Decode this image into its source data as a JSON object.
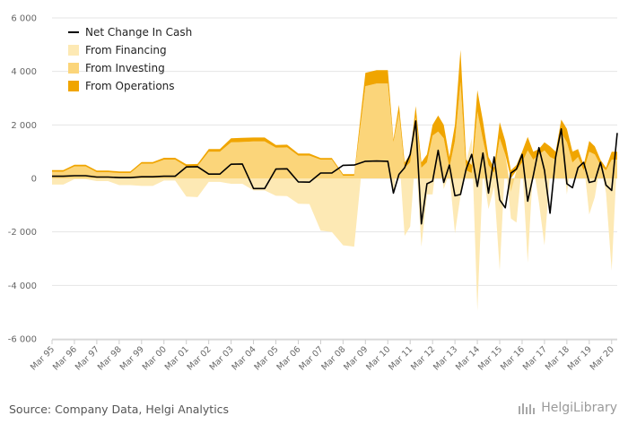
{
  "chart_data": {
    "type": "area",
    "title": "",
    "xlabel": "",
    "ylabel": "",
    "ylim": [
      -6000,
      6000
    ],
    "yticks": [
      6000,
      4000,
      2000,
      0,
      -2000,
      -4000,
      -6000
    ],
    "ytick_labels": [
      "6 000",
      "4 000",
      "2 000",
      "0",
      "-2 000",
      "-4 000",
      "-6 000"
    ],
    "xlim": [
      1995.0,
      2020.25
    ],
    "xtick_labels": [
      "Mar 95",
      "Mar 96",
      "Mar 97",
      "Mar 98",
      "Mar 99",
      "Mar 00",
      "Mar 01",
      "Mar 02",
      "Mar 03",
      "Mar 04",
      "Mar 05",
      "Mar 06",
      "Mar 07",
      "Mar 08",
      "Mar 09",
      "Mar 10",
      "Mar 11",
      "Mar 12",
      "Mar 13",
      "Mar 14",
      "Mar 15",
      "Mar 16",
      "Mar 17",
      "Mar 18",
      "Mar 19",
      "Mar 20"
    ],
    "xtick_values": [
      1995,
      1996,
      1997,
      1998,
      1999,
      2000,
      2001,
      2002,
      2003,
      2004,
      2005,
      2006,
      2007,
      2008,
      2009,
      2010,
      2011,
      2012,
      2013,
      2014,
      2015,
      2016,
      2017,
      2018,
      2019,
      2020
    ],
    "legend_position": "top-left",
    "stacked": true,
    "series": [
      {
        "name": "Net Change In Cash",
        "kind": "line",
        "color": "#000000",
        "points": [
          [
            1995,
            80
          ],
          [
            1995.5,
            80
          ],
          [
            1996,
            100
          ],
          [
            1996.5,
            100
          ],
          [
            1997,
            50
          ],
          [
            1997.5,
            50
          ],
          [
            1998,
            30
          ],
          [
            1998.5,
            30
          ],
          [
            1999,
            60
          ],
          [
            1999.5,
            60
          ],
          [
            2000,
            80
          ],
          [
            2000.5,
            80
          ],
          [
            2001,
            430
          ],
          [
            2001.5,
            440
          ],
          [
            2002,
            160
          ],
          [
            2002.5,
            160
          ],
          [
            2003,
            530
          ],
          [
            2003.5,
            540
          ],
          [
            2004,
            -380
          ],
          [
            2004.5,
            -380
          ],
          [
            2005,
            350
          ],
          [
            2005.5,
            360
          ],
          [
            2006,
            -130
          ],
          [
            2006.5,
            -140
          ],
          [
            2007,
            200
          ],
          [
            2007.5,
            200
          ],
          [
            2008,
            490
          ],
          [
            2008.5,
            500
          ],
          [
            2009,
            640
          ],
          [
            2009.5,
            650
          ],
          [
            2010,
            640
          ],
          [
            2010.25,
            -550
          ],
          [
            2010.5,
            150
          ],
          [
            2010.75,
            400
          ],
          [
            2011,
            900
          ],
          [
            2011.25,
            2150
          ],
          [
            2011.5,
            -1700
          ],
          [
            2011.75,
            -200
          ],
          [
            2012,
            -100
          ],
          [
            2012.25,
            1050
          ],
          [
            2012.5,
            -150
          ],
          [
            2012.75,
            500
          ],
          [
            2013,
            -650
          ],
          [
            2013.25,
            -600
          ],
          [
            2013.5,
            350
          ],
          [
            2013.75,
            900
          ],
          [
            2014,
            -300
          ],
          [
            2014.25,
            950
          ],
          [
            2014.5,
            -550
          ],
          [
            2014.75,
            800
          ],
          [
            2015,
            -800
          ],
          [
            2015.25,
            -1100
          ],
          [
            2015.5,
            200
          ],
          [
            2015.75,
            350
          ],
          [
            2016,
            900
          ],
          [
            2016.25,
            -850
          ],
          [
            2016.5,
            100
          ],
          [
            2016.75,
            1150
          ],
          [
            2017,
            300
          ],
          [
            2017.25,
            -1300
          ],
          [
            2017.5,
            800
          ],
          [
            2017.75,
            1850
          ],
          [
            2018,
            -200
          ],
          [
            2018.25,
            -350
          ],
          [
            2018.5,
            400
          ],
          [
            2018.75,
            600
          ],
          [
            2019,
            -150
          ],
          [
            2019.25,
            -100
          ],
          [
            2019.5,
            600
          ],
          [
            2019.75,
            -250
          ],
          [
            2020,
            -450
          ],
          [
            2020.25,
            1700
          ]
        ]
      },
      {
        "name": "From Financing",
        "kind": "area",
        "color": "#fde9b4",
        "points": [
          [
            1995,
            -230
          ],
          [
            1995.5,
            -230
          ],
          [
            1996,
            -30
          ],
          [
            1996.5,
            -30
          ],
          [
            1997,
            -100
          ],
          [
            1997.5,
            -100
          ],
          [
            1998,
            -250
          ],
          [
            1998.5,
            -250
          ],
          [
            1999,
            -280
          ],
          [
            1999.5,
            -280
          ],
          [
            2000,
            -80
          ],
          [
            2000.5,
            -80
          ],
          [
            2001,
            -680
          ],
          [
            2001.5,
            -700
          ],
          [
            2002,
            -130
          ],
          [
            2002.5,
            -130
          ],
          [
            2003,
            -200
          ],
          [
            2003.5,
            -200
          ],
          [
            2004,
            -450
          ],
          [
            2004.5,
            -450
          ],
          [
            2005,
            -650
          ],
          [
            2005.5,
            -660
          ],
          [
            2006,
            -950
          ],
          [
            2006.5,
            -960
          ],
          [
            2007,
            -1950
          ],
          [
            2007.5,
            -2000
          ],
          [
            2008,
            -2500
          ],
          [
            2008.5,
            -2550
          ],
          [
            2009,
            1750
          ],
          [
            2009.5,
            1760
          ],
          [
            2010,
            1400
          ],
          [
            2010.25,
            -600
          ],
          [
            2010.5,
            1000
          ],
          [
            2010.75,
            -2150
          ],
          [
            2011,
            -1800
          ],
          [
            2011.25,
            1000
          ],
          [
            2011.5,
            -2550
          ],
          [
            2011.75,
            -600
          ],
          [
            2012,
            -600
          ],
          [
            2012.25,
            1150
          ],
          [
            2012.5,
            -400
          ],
          [
            2012.75,
            200
          ],
          [
            2013,
            -2050
          ],
          [
            2013.25,
            -650
          ],
          [
            2013.5,
            600
          ],
          [
            2013.75,
            1500
          ],
          [
            2014,
            -4950
          ],
          [
            2014.25,
            300
          ],
          [
            2014.5,
            -1150
          ],
          [
            2014.75,
            -300
          ],
          [
            2015,
            -3450
          ],
          [
            2015.25,
            700
          ],
          [
            2015.5,
            -1500
          ],
          [
            2015.75,
            -1650
          ],
          [
            2016,
            600
          ],
          [
            2016.25,
            -3150
          ],
          [
            2016.5,
            500
          ],
          [
            2016.75,
            -900
          ],
          [
            2017,
            -2500
          ],
          [
            2017.25,
            200
          ],
          [
            2017.5,
            900
          ],
          [
            2017.75,
            1400
          ],
          [
            2018,
            -600
          ],
          [
            2018.25,
            1100
          ],
          [
            2018.5,
            400
          ],
          [
            2018.75,
            600
          ],
          [
            2019,
            -1350
          ],
          [
            2019.25,
            -700
          ],
          [
            2019.5,
            600
          ],
          [
            2019.75,
            -550
          ],
          [
            2020,
            -3450
          ],
          [
            2020.25,
            900
          ]
        ]
      },
      {
        "name": "From Investing",
        "kind": "area",
        "color": "#fbd57a",
        "points": [
          [
            1995,
            250
          ],
          [
            1995.5,
            250
          ],
          [
            1996,
            450
          ],
          [
            1996.5,
            450
          ],
          [
            1997,
            230
          ],
          [
            1997.5,
            230
          ],
          [
            1998,
            200
          ],
          [
            1998.5,
            200
          ],
          [
            1999,
            550
          ],
          [
            1999.5,
            550
          ],
          [
            2000,
            700
          ],
          [
            2000.5,
            700
          ],
          [
            2001,
            450
          ],
          [
            2001.5,
            460
          ],
          [
            2002,
            1000
          ],
          [
            2002.5,
            1000
          ],
          [
            2003,
            1350
          ],
          [
            2003.5,
            1360
          ],
          [
            2004,
            1380
          ],
          [
            2004.5,
            1380
          ],
          [
            2005,
            1150
          ],
          [
            2005.5,
            1160
          ],
          [
            2006,
            850
          ],
          [
            2006.5,
            850
          ],
          [
            2007,
            700
          ],
          [
            2007.5,
            700
          ],
          [
            2008,
            100
          ],
          [
            2008.5,
            100
          ],
          [
            2009,
            3450
          ],
          [
            2009.5,
            3550
          ],
          [
            2010,
            3550
          ],
          [
            2010.25,
            1350
          ],
          [
            2010.5,
            2450
          ],
          [
            2010.75,
            400
          ],
          [
            2011,
            600
          ],
          [
            2011.25,
            2300
          ],
          [
            2011.5,
            400
          ],
          [
            2011.75,
            600
          ],
          [
            2012,
            1600
          ],
          [
            2012.25,
            1750
          ],
          [
            2012.5,
            1500
          ],
          [
            2012.75,
            400
          ],
          [
            2013,
            1400
          ],
          [
            2013.25,
            3600
          ],
          [
            2013.5,
            300
          ],
          [
            2013.75,
            200
          ],
          [
            2014,
            2500
          ],
          [
            2014.25,
            1450
          ],
          [
            2014.5,
            500
          ],
          [
            2014.75,
            200
          ],
          [
            2015,
            1500
          ],
          [
            2015.25,
            900
          ],
          [
            2015.5,
            -500
          ],
          [
            2015.75,
            300
          ],
          [
            2016,
            600
          ],
          [
            2016.25,
            1050
          ],
          [
            2016.5,
            700
          ],
          [
            2016.75,
            900
          ],
          [
            2017,
            1050
          ],
          [
            2017.25,
            800
          ],
          [
            2017.5,
            700
          ],
          [
            2017.75,
            1700
          ],
          [
            2018,
            1350
          ],
          [
            2018.25,
            600
          ],
          [
            2018.5,
            800
          ],
          [
            2018.75,
            300
          ],
          [
            2019,
            1000
          ],
          [
            2019.25,
            900
          ],
          [
            2019.5,
            500
          ],
          [
            2019.75,
            300
          ],
          [
            2020,
            700
          ],
          [
            2020.25,
            700
          ]
        ]
      },
      {
        "name": "From Operations",
        "kind": "area",
        "color": "#f0a500",
        "points": [
          [
            1995,
            60
          ],
          [
            1995.5,
            60
          ],
          [
            1996,
            60
          ],
          [
            1996.5,
            60
          ],
          [
            1997,
            60
          ],
          [
            1997.5,
            60
          ],
          [
            1998,
            60
          ],
          [
            1998.5,
            60
          ],
          [
            1999,
            60
          ],
          [
            1999.5,
            60
          ],
          [
            2000,
            70
          ],
          [
            2000.5,
            70
          ],
          [
            2001,
            80
          ],
          [
            2001.5,
            80
          ],
          [
            2002,
            100
          ],
          [
            2002.5,
            100
          ],
          [
            2003,
            150
          ],
          [
            2003.5,
            160
          ],
          [
            2004,
            150
          ],
          [
            2004.5,
            150
          ],
          [
            2005,
            100
          ],
          [
            2005.5,
            100
          ],
          [
            2006,
            80
          ],
          [
            2006.5,
            80
          ],
          [
            2007,
            60
          ],
          [
            2007.5,
            60
          ],
          [
            2008,
            60
          ],
          [
            2008.5,
            60
          ],
          [
            2009,
            500
          ],
          [
            2009.5,
            500
          ],
          [
            2010,
            500
          ],
          [
            2010.25,
            100
          ],
          [
            2010.5,
            300
          ],
          [
            2010.75,
            200
          ],
          [
            2011,
            300
          ],
          [
            2011.25,
            400
          ],
          [
            2011.5,
            200
          ],
          [
            2011.75,
            300
          ],
          [
            2012,
            400
          ],
          [
            2012.25,
            600
          ],
          [
            2012.5,
            500
          ],
          [
            2012.75,
            400
          ],
          [
            2013,
            600
          ],
          [
            2013.25,
            1200
          ],
          [
            2013.5,
            400
          ],
          [
            2013.75,
            300
          ],
          [
            2014,
            800
          ],
          [
            2014.25,
            700
          ],
          [
            2014.5,
            300
          ],
          [
            2014.75,
            200
          ],
          [
            2015,
            600
          ],
          [
            2015.25,
            500
          ],
          [
            2015.5,
            300
          ],
          [
            2015.75,
            200
          ],
          [
            2016,
            400
          ],
          [
            2016.25,
            500
          ],
          [
            2016.5,
            300
          ],
          [
            2016.75,
            200
          ],
          [
            2017,
            300
          ],
          [
            2017.25,
            400
          ],
          [
            2017.5,
            300
          ],
          [
            2017.75,
            500
          ],
          [
            2018,
            500
          ],
          [
            2018.25,
            400
          ],
          [
            2018.5,
            300
          ],
          [
            2018.75,
            200
          ],
          [
            2019,
            400
          ],
          [
            2019.25,
            300
          ],
          [
            2019.5,
            200
          ],
          [
            2019.75,
            100
          ],
          [
            2020,
            300
          ],
          [
            2020.25,
            300
          ]
        ]
      }
    ]
  },
  "footer": {
    "source": "Source: Company Data, Helgi Analytics",
    "brand": "HelgiLibrary"
  }
}
